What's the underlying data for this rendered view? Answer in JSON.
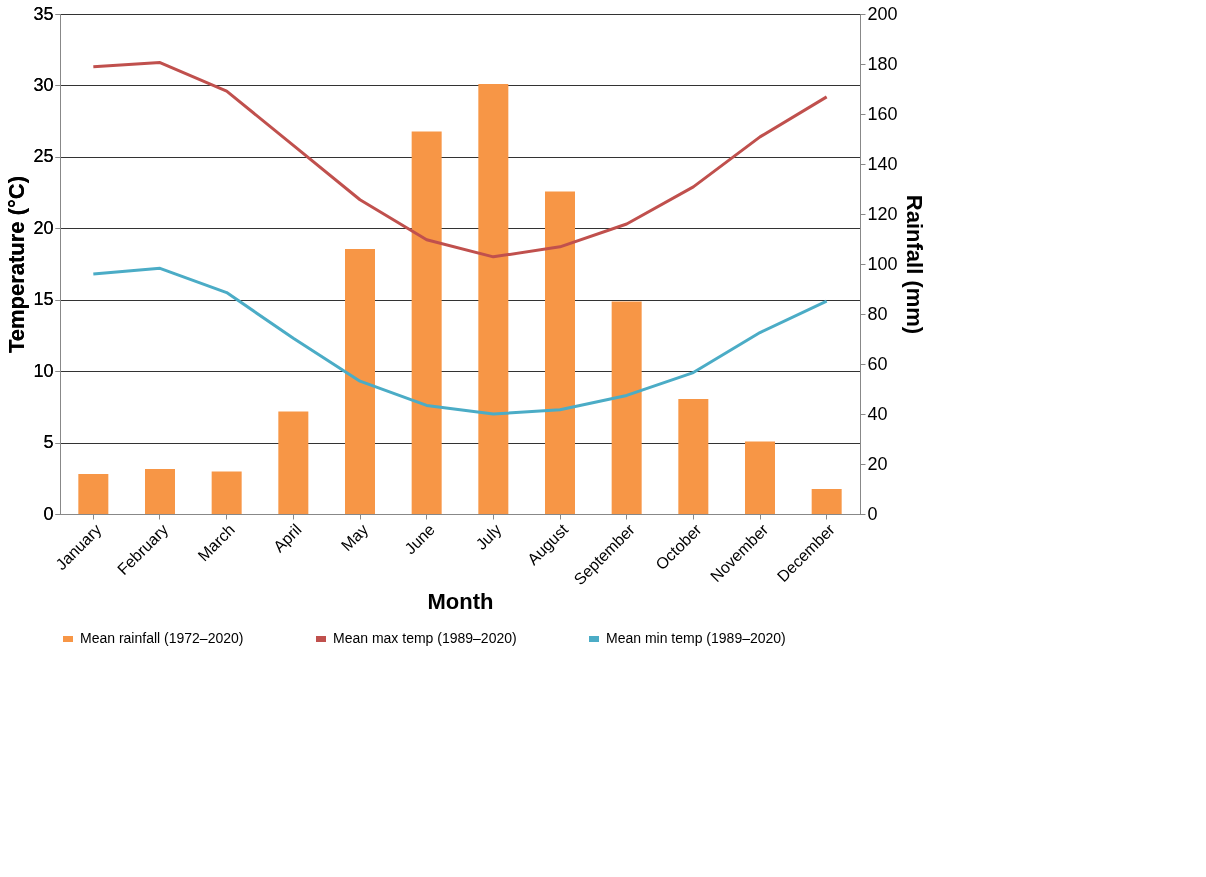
{
  "chart_data": {
    "type": "bar",
    "xlabel": "Month",
    "ylabel": "Temperature (°C)",
    "y2label": "Rainfall (mm)",
    "categories": [
      "January",
      "February",
      "March",
      "April",
      "May",
      "June",
      "July",
      "August",
      "September",
      "October",
      "November",
      "December"
    ],
    "series": [
      {
        "name": "Mean rainfall (1972–2020)",
        "axis": "y2",
        "color": "#f79646",
        "values": [
          16,
          18,
          17,
          41,
          106,
          153,
          172,
          129,
          85,
          46,
          29,
          10
        ]
      },
      {
        "name": "Mean max temp (1989–2020)",
        "type": "line",
        "color": "#c0504d",
        "values": [
          31.3,
          31.6,
          29.6,
          25.8,
          22.0,
          19.2,
          18.0,
          18.7,
          20.3,
          22.9,
          26.4,
          29.2
        ]
      },
      {
        "name": "Mean min temp (1989–2020)",
        "type": "line",
        "color": "#4bacc6",
        "values": [
          16.8,
          17.2,
          15.5,
          12.3,
          9.3,
          7.6,
          7.0,
          7.3,
          8.3,
          9.9,
          12.7,
          14.9
        ]
      }
    ],
    "ylim": [
      0,
      35
    ],
    "yticks": [
      0,
      5,
      10,
      15,
      20,
      25,
      30,
      35
    ],
    "y2lim": [
      0,
      200
    ],
    "y2ticks": [
      0,
      20,
      40,
      60,
      80,
      100,
      120,
      140,
      160,
      180,
      200
    ],
    "grid": "y",
    "legend": "bottom",
    "marker": "none",
    "line_style": "solid"
  }
}
